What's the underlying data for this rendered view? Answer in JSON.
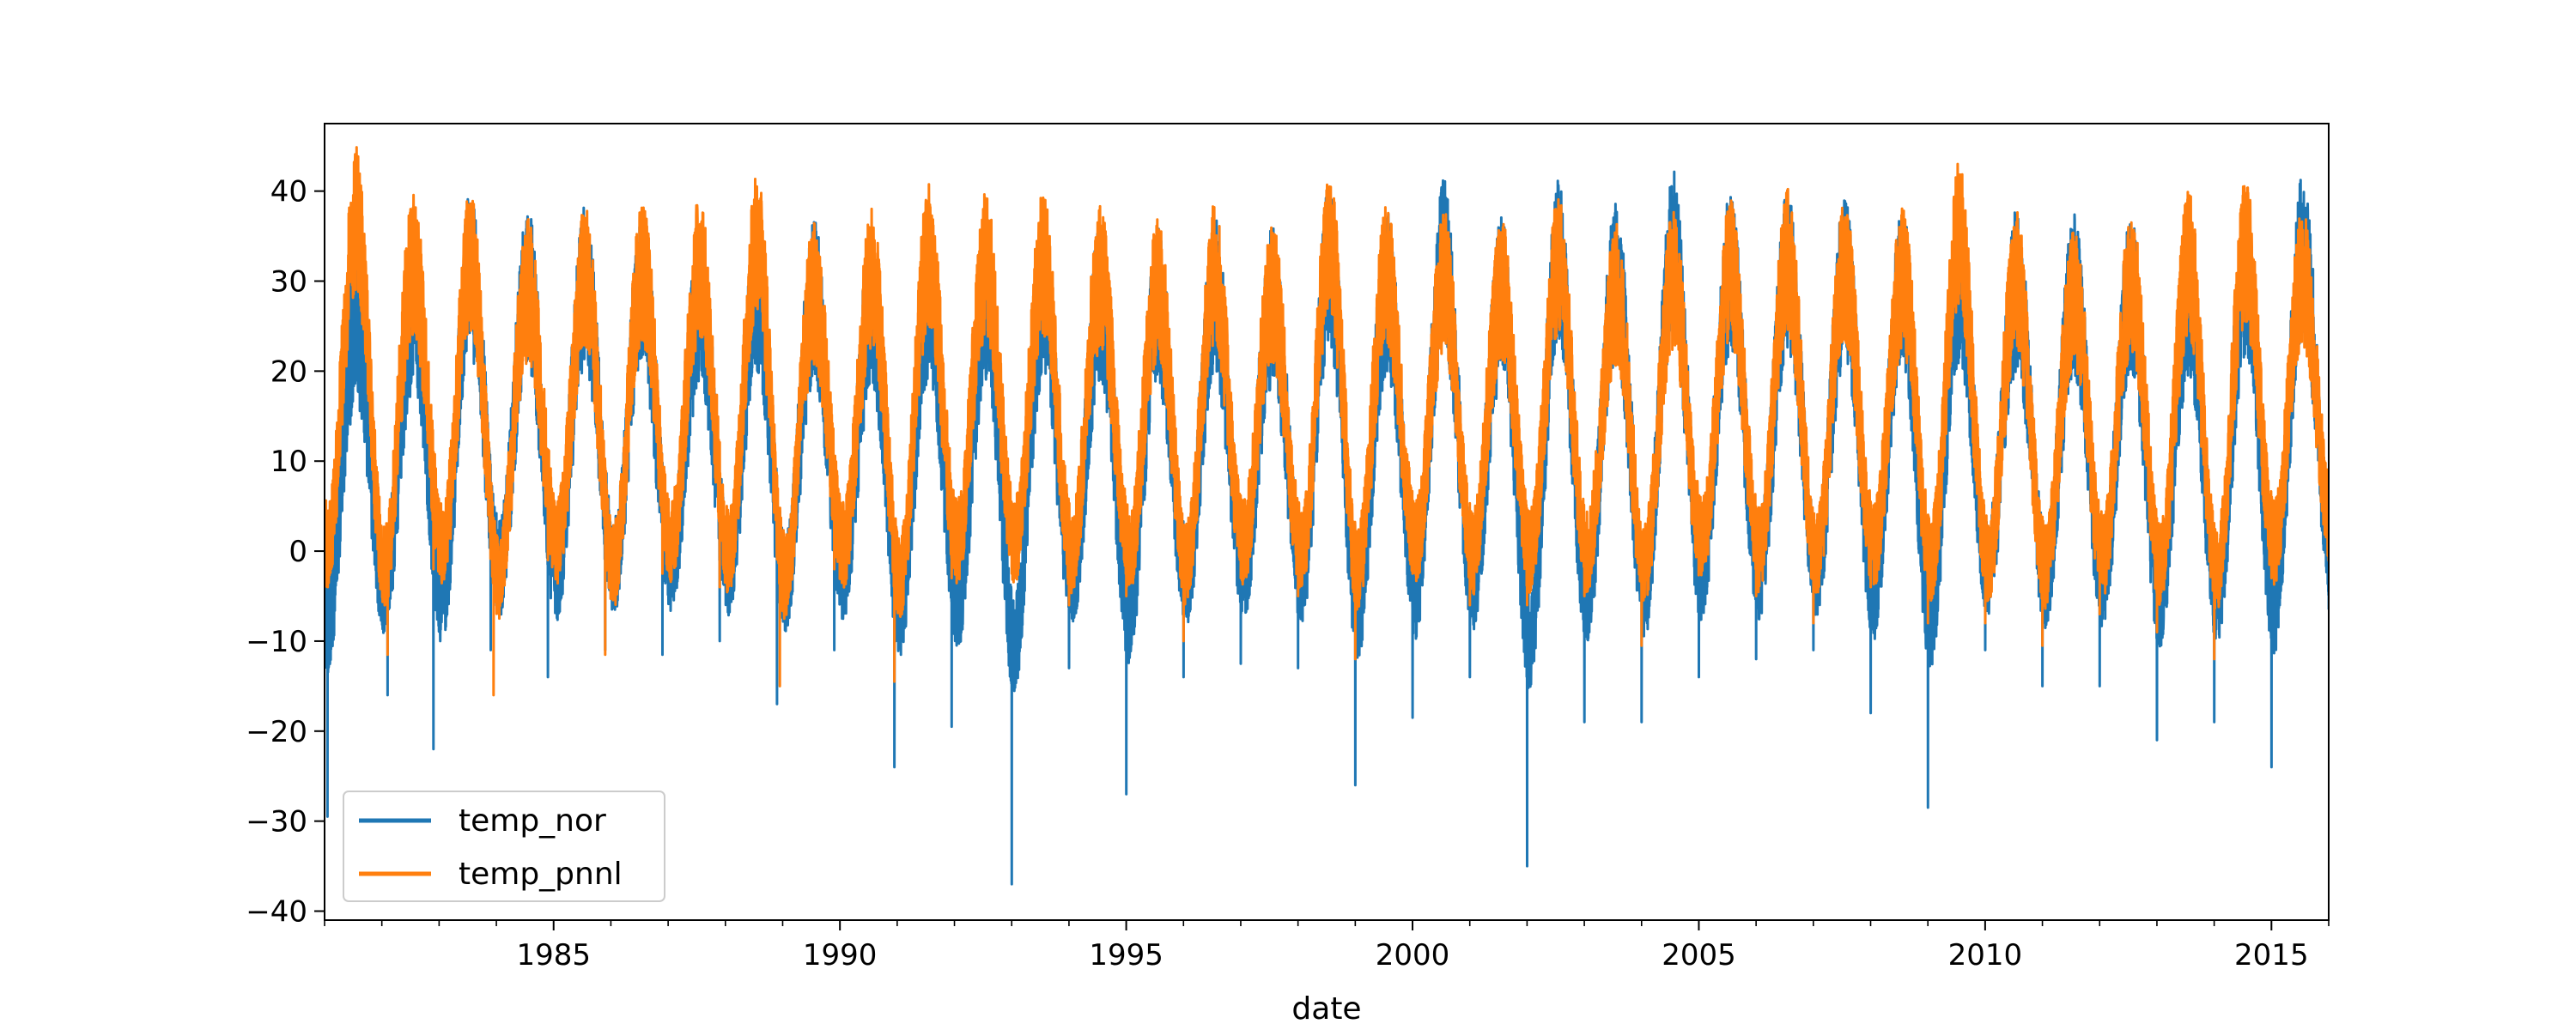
{
  "chart_data": {
    "type": "line",
    "title": "",
    "xlabel": "date",
    "ylabel": "",
    "xlim": [
      1981.0,
      2016.0
    ],
    "ylim": [
      -41,
      47.5
    ],
    "xticks": [
      1985,
      1990,
      1995,
      2000,
      2005,
      2010,
      2015
    ],
    "xtick_labels": [
      "1985",
      "1990",
      "1995",
      "2000",
      "2005",
      "2010",
      "2015"
    ],
    "yticks": [
      -40,
      -30,
      -20,
      -10,
      0,
      10,
      20,
      30,
      40
    ],
    "ytick_labels": [
      "−40",
      "−30",
      "−20",
      "−10",
      "0",
      "10",
      "20",
      "30",
      "40"
    ],
    "x_minor_ticks": "yearly",
    "grid": false,
    "legend_position": "lower left",
    "series": [
      {
        "name": "temp_nor",
        "color": "#1f77b4",
        "summer_peaks": [
          [
            1981.5,
            31.5
          ],
          [
            1982.5,
            33.0
          ],
          [
            1983.5,
            37.0
          ],
          [
            1984.5,
            35.0
          ],
          [
            1985.5,
            35.5
          ],
          [
            1986.5,
            36.0
          ],
          [
            1987.5,
            33.0
          ],
          [
            1988.5,
            35.0
          ],
          [
            1989.5,
            34.0
          ],
          [
            1990.5,
            33.0
          ],
          [
            1991.5,
            34.0
          ],
          [
            1992.5,
            34.0
          ],
          [
            1993.5,
            34.0
          ],
          [
            1994.5,
            34.0
          ],
          [
            1995.5,
            33.0
          ],
          [
            1996.5,
            34.5
          ],
          [
            1997.5,
            33.0
          ],
          [
            1998.5,
            38.0
          ],
          [
            1999.5,
            34.5
          ],
          [
            2000.5,
            38.5
          ],
          [
            2001.5,
            34.0
          ],
          [
            2002.5,
            38.5
          ],
          [
            2003.5,
            36.0
          ],
          [
            2004.5,
            39.5
          ],
          [
            2005.5,
            37.0
          ],
          [
            2006.5,
            37.0
          ],
          [
            2007.5,
            36.5
          ],
          [
            2008.5,
            36.0
          ],
          [
            2009.5,
            36.0
          ],
          [
            2010.5,
            35.0
          ],
          [
            2011.5,
            34.5
          ],
          [
            2012.5,
            35.0
          ],
          [
            2013.5,
            34.0
          ],
          [
            2014.5,
            36.5
          ],
          [
            2015.5,
            39.0
          ]
        ],
        "winter_troughs": [
          [
            1981.05,
            -29.5
          ],
          [
            1982.1,
            -16.0
          ],
          [
            1982.9,
            -22.0
          ],
          [
            1983.9,
            -11.0
          ],
          [
            1984.9,
            -14.0
          ],
          [
            1985.9,
            -11.0
          ],
          [
            1986.9,
            -11.5
          ],
          [
            1987.9,
            -10.0
          ],
          [
            1988.9,
            -17.0
          ],
          [
            1989.9,
            -11.0
          ],
          [
            1990.95,
            -24.0
          ],
          [
            1991.95,
            -19.5
          ],
          [
            1993.0,
            -37.0
          ],
          [
            1994.0,
            -13.0
          ],
          [
            1995.0,
            -27.0
          ],
          [
            1996.0,
            -14.0
          ],
          [
            1997.0,
            -12.5
          ],
          [
            1998.0,
            -13.0
          ],
          [
            1999.0,
            -26.0
          ],
          [
            2000.0,
            -18.5
          ],
          [
            2001.0,
            -14.0
          ],
          [
            2002.0,
            -35.0
          ],
          [
            2003.0,
            -19.0
          ],
          [
            2004.0,
            -19.0
          ],
          [
            2005.0,
            -14.0
          ],
          [
            2006.0,
            -12.0
          ],
          [
            2007.0,
            -11.0
          ],
          [
            2008.0,
            -18.0
          ],
          [
            2009.0,
            -28.5
          ],
          [
            2010.0,
            -11.0
          ],
          [
            2011.0,
            -15.0
          ],
          [
            2012.0,
            -15.0
          ],
          [
            2013.0,
            -21.0
          ],
          [
            2014.0,
            -19.0
          ],
          [
            2015.0,
            -24.0
          ],
          [
            2016.0,
            -6.5
          ]
        ]
      },
      {
        "name": "temp_pnnl",
        "color": "#ff7f0e",
        "summer_peaks": [
          [
            1981.55,
            43.0
          ],
          [
            1982.5,
            38.0
          ],
          [
            1983.5,
            38.5
          ],
          [
            1984.5,
            35.0
          ],
          [
            1985.5,
            36.5
          ],
          [
            1986.5,
            37.0
          ],
          [
            1987.5,
            37.5
          ],
          [
            1988.55,
            40.5
          ],
          [
            1989.5,
            34.5
          ],
          [
            1990.5,
            36.0
          ],
          [
            1991.5,
            39.0
          ],
          [
            1992.5,
            38.0
          ],
          [
            1993.55,
            38.0
          ],
          [
            1994.5,
            36.5
          ],
          [
            1995.5,
            35.0
          ],
          [
            1996.5,
            37.0
          ],
          [
            1997.5,
            34.0
          ],
          [
            1998.55,
            40.5
          ],
          [
            1999.5,
            36.5
          ],
          [
            2000.5,
            36.0
          ],
          [
            2001.5,
            35.0
          ],
          [
            2002.5,
            38.0
          ],
          [
            2003.5,
            34.5
          ],
          [
            2004.5,
            36.0
          ],
          [
            2005.5,
            37.0
          ],
          [
            2006.5,
            38.5
          ],
          [
            2007.5,
            37.0
          ],
          [
            2008.5,
            36.0
          ],
          [
            2009.5,
            41.5
          ],
          [
            2010.5,
            36.0
          ],
          [
            2011.5,
            34.5
          ],
          [
            2012.5,
            36.0
          ],
          [
            2013.5,
            38.0
          ],
          [
            2014.5,
            39.5
          ],
          [
            2015.5,
            36.5
          ]
        ],
        "winter_troughs": [
          [
            1981.05,
            -3.5
          ],
          [
            1982.1,
            -11.5
          ],
          [
            1982.9,
            -2.0
          ],
          [
            1983.95,
            -16.0
          ],
          [
            1984.9,
            -1.0
          ],
          [
            1985.9,
            -11.5
          ],
          [
            1986.9,
            -2.5
          ],
          [
            1987.9,
            -4.0
          ],
          [
            1988.95,
            -15.0
          ],
          [
            1989.9,
            -2.0
          ],
          [
            1990.95,
            -14.5
          ],
          [
            1991.95,
            -3.0
          ],
          [
            1993.0,
            -2.5
          ],
          [
            1994.0,
            -6.0
          ],
          [
            1995.0,
            -5.0
          ],
          [
            1996.0,
            -10.0
          ],
          [
            1997.0,
            -3.0
          ],
          [
            1998.0,
            -5.0
          ],
          [
            1999.0,
            -12.0
          ],
          [
            2000.0,
            -2.5
          ],
          [
            2001.0,
            -6.0
          ],
          [
            2002.0,
            -6.0
          ],
          [
            2003.0,
            -5.0
          ],
          [
            2004.0,
            -10.5
          ],
          [
            2005.0,
            -2.0
          ],
          [
            2006.0,
            -5.0
          ],
          [
            2007.0,
            -8.0
          ],
          [
            2008.0,
            -4.0
          ],
          [
            2009.0,
            -8.0
          ],
          [
            2010.0,
            -8.0
          ],
          [
            2011.0,
            -10.5
          ],
          [
            2012.0,
            -7.0
          ],
          [
            2013.0,
            -9.0
          ],
          [
            2014.0,
            -12.0
          ],
          [
            2015.0,
            -3.0
          ],
          [
            2016.0,
            3.0
          ]
        ]
      }
    ]
  }
}
